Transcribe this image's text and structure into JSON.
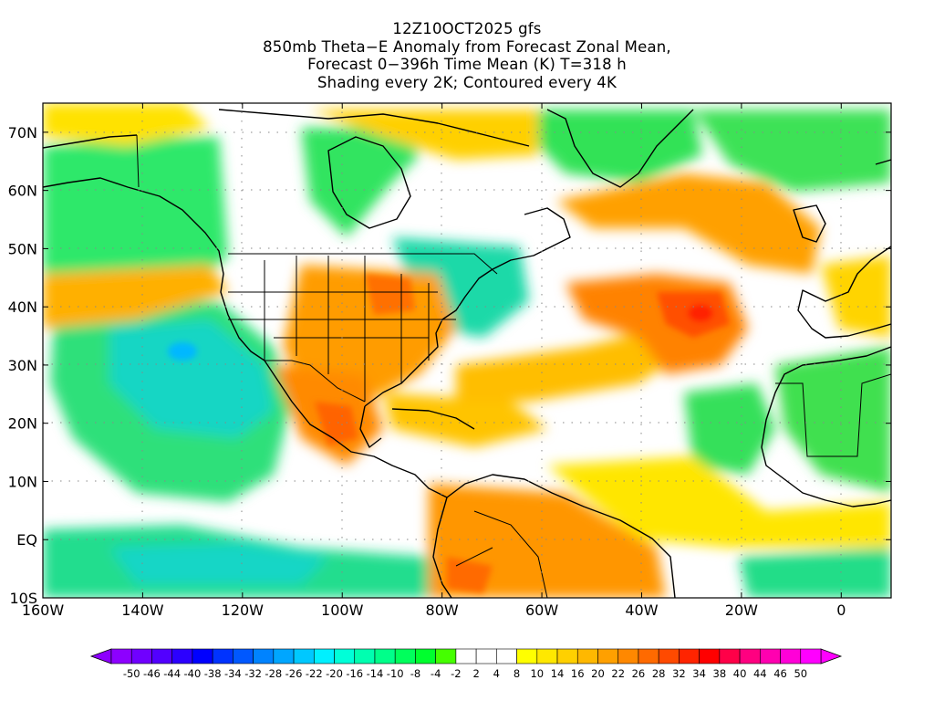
{
  "title": {
    "lines": [
      "12Z10OCT2025 gfs",
      "850mb Theta−E Anomaly from Forecast Zonal Mean,",
      "Forecast 0−396h Time Mean (K) T=318 h",
      "Shading every 2K; Contoured every 4K"
    ]
  },
  "map": {
    "lon_range": [
      -160,
      10
    ],
    "lat_range": [
      -10,
      75
    ],
    "lat_ticks": [
      {
        "value": 70,
        "label": "70N"
      },
      {
        "value": 60,
        "label": "60N"
      },
      {
        "value": 50,
        "label": "50N"
      },
      {
        "value": 40,
        "label": "40N"
      },
      {
        "value": 30,
        "label": "30N"
      },
      {
        "value": 20,
        "label": "20N"
      },
      {
        "value": 10,
        "label": "10N"
      },
      {
        "value": 0,
        "label": "EQ"
      },
      {
        "value": -10,
        "label": "10S"
      }
    ],
    "lon_ticks": [
      {
        "value": -160,
        "label": "160W"
      },
      {
        "value": -140,
        "label": "140W"
      },
      {
        "value": -120,
        "label": "120W"
      },
      {
        "value": -100,
        "label": "100W"
      },
      {
        "value": -80,
        "label": "80W"
      },
      {
        "value": -60,
        "label": "60W"
      },
      {
        "value": -40,
        "label": "40W"
      },
      {
        "value": -20,
        "label": "20W"
      },
      {
        "value": 0,
        "label": "0"
      }
    ]
  },
  "colorbar": {
    "labels": [
      "-50",
      "-46",
      "-44",
      "-40",
      "-38",
      "-34",
      "-32",
      "-28",
      "-26",
      "-22",
      "-20",
      "-16",
      "-14",
      "-10",
      "-8",
      "-4",
      "-2",
      "2",
      "4",
      "8",
      "10",
      "14",
      "16",
      "20",
      "22",
      "26",
      "28",
      "32",
      "34",
      "38",
      "40",
      "44",
      "46",
      "50"
    ],
    "colors": [
      "#8d00ff",
      "#7000ff",
      "#5200ff",
      "#2c00ff",
      "#0000ff",
      "#0033ff",
      "#0058ff",
      "#0083ff",
      "#00a6ff",
      "#00c8ff",
      "#00f0ff",
      "#00ffd8",
      "#00ffb0",
      "#00ff8a",
      "#00ff5c",
      "#00ff2e",
      "#45ff00",
      "#ffffff",
      "#ffffff",
      "#ffffff",
      "#ffff00",
      "#ffe800",
      "#ffd000",
      "#ffb800",
      "#ffa000",
      "#ff8800",
      "#ff6a00",
      "#ff4a00",
      "#ff2400",
      "#ff0000",
      "#ff0048",
      "#ff0080",
      "#ff00b0",
      "#ff00d8",
      "#ff00ff"
    ],
    "left_arrow_color": "#8d00ff",
    "right_arrow_color": "#ff00ff"
  }
}
